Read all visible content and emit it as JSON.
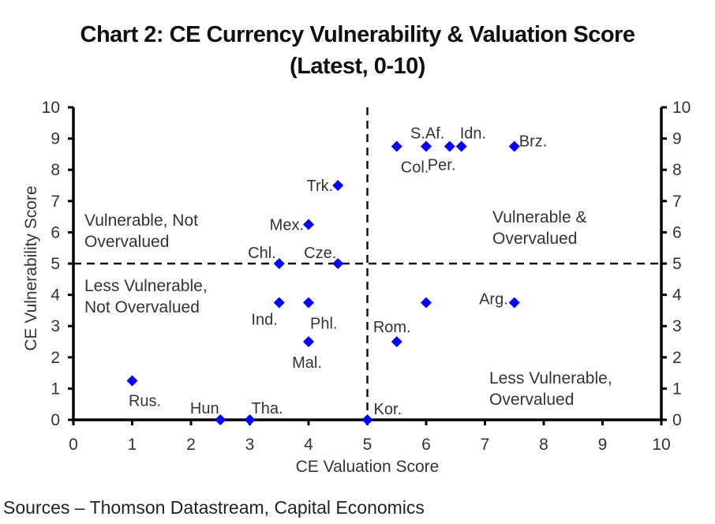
{
  "chart_data": {
    "type": "scatter",
    "title": "Chart 2: CE Currency Vulnerability & Valuation Score",
    "subtitle": "(Latest, 0-10)",
    "xlabel": "CE Valuation Score",
    "ylabel": "CE Vulnerability Score",
    "xlim": [
      0,
      10
    ],
    "ylim": [
      0,
      10
    ],
    "xticks": [
      "0",
      "1",
      "2",
      "3",
      "4",
      "5",
      "6",
      "7",
      "8",
      "9",
      "10"
    ],
    "yticks": [
      "0",
      "1",
      "2",
      "3",
      "4",
      "5",
      "6",
      "7",
      "8",
      "9",
      "10"
    ],
    "y2ticks": [
      "0",
      "1",
      "2",
      "3",
      "4",
      "5",
      "6",
      "7",
      "8",
      "9",
      "10"
    ],
    "grid": false,
    "marker_color": "#0000ff",
    "reference_lines": {
      "x": 5,
      "y": 5,
      "style": "dashed"
    },
    "quadrant_labels": [
      {
        "text": [
          "Vulnerable, Not",
          "Overvalued"
        ],
        "position": "top-left"
      },
      {
        "text": [
          "Vulnerable &",
          "Overvalued"
        ],
        "position": "top-right"
      },
      {
        "text": [
          "Less Vulnerable,",
          "Not Overvalued"
        ],
        "position": "bottom-left"
      },
      {
        "text": [
          "Less Vulnerable,",
          "Overvalued"
        ],
        "position": "bottom-right"
      }
    ],
    "points": [
      {
        "label": "Col.",
        "x": 5.5,
        "y": 8.75
      },
      {
        "label": "S.Af.",
        "x": 6.0,
        "y": 8.75
      },
      {
        "label": "Per.",
        "x": 6.4,
        "y": 8.75
      },
      {
        "label": "Idn.",
        "x": 6.6,
        "y": 8.75
      },
      {
        "label": "Brz.",
        "x": 7.5,
        "y": 8.75
      },
      {
        "label": "Trk.",
        "x": 4.5,
        "y": 7.5
      },
      {
        "label": "Mex.",
        "x": 4.0,
        "y": 6.25
      },
      {
        "label": "Chl.",
        "x": 3.5,
        "y": 5.0
      },
      {
        "label": "Cze.",
        "x": 4.5,
        "y": 5.0
      },
      {
        "label": "Ind.",
        "x": 3.5,
        "y": 3.75
      },
      {
        "label": "Phl.",
        "x": 4.0,
        "y": 3.75
      },
      {
        "label": "Mal.",
        "x": 4.0,
        "y": 2.5
      },
      {
        "label": "Rom.",
        "x": 5.5,
        "y": 2.5
      },
      {
        "label": "",
        "x": 6.0,
        "y": 3.75
      },
      {
        "label": "Arg.",
        "x": 7.5,
        "y": 3.75
      },
      {
        "label": "Rus.",
        "x": 1.0,
        "y": 1.25
      },
      {
        "label": "Hun",
        "x": 2.5,
        "y": 0.0
      },
      {
        "label": "Tha.",
        "x": 3.0,
        "y": 0.0
      },
      {
        "label": "Kor.",
        "x": 5.0,
        "y": 0.0
      }
    ]
  },
  "source": "Sources – Thomson Datastream, Capital Economics"
}
